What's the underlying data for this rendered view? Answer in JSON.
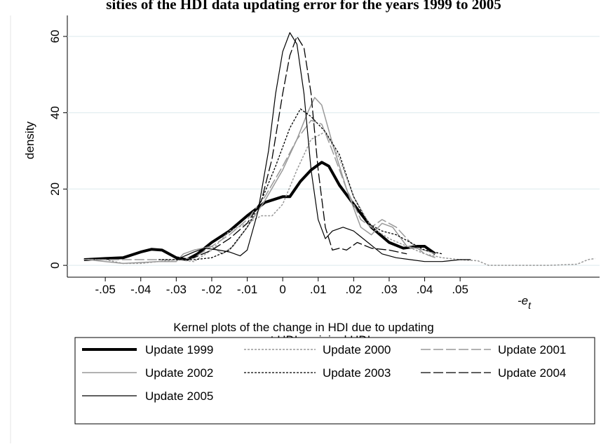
{
  "chart_data": {
    "type": "line",
    "title": "sities of the HDI data updating error for the years 1999 to 2005",
    "xlabel": [
      "Kernel plots of the change in HDI due to updating",
      "current HDI - original HDI"
    ],
    "ylabel": "density",
    "x_symbol": "-e",
    "x_symbol_subscript": "t",
    "xlim": [
      -0.0607,
      0.0893
    ],
    "ylim": [
      -3.1,
      65.5
    ],
    "xticks": [
      {
        "value": -0.05,
        "label": "-.05"
      },
      {
        "value": -0.04,
        "label": "-.04"
      },
      {
        "value": -0.03,
        "label": "-.03"
      },
      {
        "value": -0.02,
        "label": "-.02"
      },
      {
        "value": -0.01,
        "label": "-.01"
      },
      0,
      {
        "value": 0.01,
        "label": ".01"
      },
      {
        "value": 0.02,
        "label": ".02"
      },
      {
        "value": 0.03,
        "label": ".03"
      },
      {
        "value": 0.04,
        "label": ".04"
      },
      {
        "value": 0.05,
        "label": ".05"
      }
    ],
    "yticks": [
      0,
      20,
      40,
      60
    ],
    "grid": true,
    "series": [
      {
        "name": "Update 1999",
        "color": "#000000",
        "width": 4,
        "dash": "none",
        "x": [
          -0.056,
          -0.05,
          -0.045,
          -0.04,
          -0.037,
          -0.034,
          -0.03,
          -0.027,
          -0.024,
          -0.02,
          -0.015,
          -0.01,
          -0.005,
          0,
          0.002,
          0.005,
          0.008,
          0.011,
          0.013,
          0.016,
          0.02,
          0.025,
          0.03,
          0.034,
          0.038,
          0.04,
          0.043
        ],
        "values": [
          1.5,
          1.8,
          2,
          3.5,
          4.2,
          4,
          2,
          1.5,
          3,
          6,
          9,
          13,
          16.5,
          18,
          18,
          22,
          25,
          27,
          26,
          21,
          16,
          10,
          6,
          4.5,
          5,
          5,
          3
        ]
      },
      {
        "name": "Update 2000",
        "color": "#999999",
        "width": 1.5,
        "dash": "3,2",
        "x": [
          -0.055,
          -0.05,
          -0.045,
          -0.04,
          -0.035,
          -0.03,
          -0.025,
          -0.02,
          -0.015,
          -0.01,
          -0.006,
          -0.003,
          0,
          0.004,
          0.008,
          0.012,
          0.016,
          0.02,
          0.025,
          0.03,
          0.035,
          0.04,
          0.045,
          0.05,
          0.055,
          0.058,
          0.062,
          0.075,
          0.083,
          0.086,
          0.088
        ],
        "values": [
          1.5,
          1.5,
          0.5,
          0.5,
          1,
          1.5,
          1,
          4,
          9,
          11,
          13,
          13,
          16,
          25,
          33,
          35,
          28,
          18,
          10,
          7,
          5,
          3,
          2,
          1.5,
          1.2,
          0,
          0,
          0,
          0.3,
          1.5,
          1.8
        ]
      },
      {
        "name": "Update 2001",
        "color": "#999999",
        "width": 1.5,
        "dash": "14,4",
        "x": [
          -0.056,
          -0.05,
          -0.04,
          -0.03,
          -0.025,
          -0.02,
          -0.015,
          -0.01,
          -0.005,
          0,
          0.004,
          0.008,
          0.011,
          0.014,
          0.018,
          0.022,
          0.025,
          0.028,
          0.032,
          0.036,
          0.04,
          0.043
        ],
        "values": [
          1.5,
          1.5,
          1.5,
          1.5,
          2,
          5,
          8,
          12,
          18,
          26,
          33,
          38,
          37,
          30,
          20,
          12,
          10,
          12,
          10,
          6,
          3,
          2
        ]
      },
      {
        "name": "Update 2002",
        "color": "#999999",
        "width": 1.5,
        "dash": "none",
        "x": [
          -0.055,
          -0.05,
          -0.045,
          -0.035,
          -0.03,
          -0.028,
          -0.025,
          -0.02,
          -0.017,
          -0.014,
          -0.01,
          -0.005,
          0,
          0.004,
          0.007,
          0.009,
          0.011,
          0.014,
          0.018,
          0.022,
          0.025,
          0.028,
          0.031,
          0.035,
          0.04,
          0.043
        ],
        "values": [
          1.5,
          1,
          0.5,
          1,
          1,
          3,
          4,
          5,
          3,
          5,
          10,
          17,
          25,
          33,
          40,
          44,
          42,
          32,
          20,
          10,
          8,
          11,
          10,
          5,
          4,
          3
        ]
      },
      {
        "name": "Update 2003",
        "color": "#000000",
        "width": 1.3,
        "dash": "3,2",
        "x": [
          -0.035,
          -0.03,
          -0.025,
          -0.02,
          -0.015,
          -0.01,
          -0.006,
          -0.002,
          0.002,
          0.005,
          0.008,
          0.012,
          0.016,
          0.02,
          0.024,
          0.028,
          0.032,
          0.036,
          0.04,
          0.045
        ],
        "values": [
          1.5,
          1.5,
          1.5,
          2,
          4,
          10,
          17,
          26,
          36,
          41,
          39,
          35,
          29,
          18,
          11,
          9,
          8,
          6,
          4,
          3
        ]
      },
      {
        "name": "Update 2004",
        "color": "#000000",
        "width": 1.3,
        "dash": "14,4",
        "x": [
          -0.03,
          -0.025,
          -0.02,
          -0.015,
          -0.01,
          -0.006,
          -0.003,
          0,
          0.002,
          0.004,
          0.006,
          0.008,
          0.01,
          0.012,
          0.014,
          0.016,
          0.018,
          0.021,
          0.025,
          0.03,
          0.035
        ],
        "values": [
          1.5,
          2,
          4,
          7,
          11,
          17,
          28,
          45,
          55,
          60,
          57,
          45,
          25,
          10,
          4,
          4.5,
          4,
          6,
          4.5,
          4,
          3
        ]
      },
      {
        "name": "Update 2005",
        "color": "#000000",
        "width": 1.2,
        "dash": "none",
        "x": [
          -0.03,
          -0.025,
          -0.022,
          -0.018,
          -0.015,
          -0.012,
          -0.01,
          -0.007,
          -0.004,
          -0.002,
          0,
          0.002,
          0.004,
          0.006,
          0.008,
          0.01,
          0.012,
          0.014,
          0.017,
          0.02,
          0.024,
          0.028,
          0.032,
          0.036,
          0.04,
          0.045,
          0.05,
          0.053
        ],
        "values": [
          1.5,
          3.5,
          4.5,
          4,
          3.5,
          2.5,
          4,
          14,
          30,
          45,
          56,
          61,
          58,
          45,
          25,
          12,
          7,
          9,
          10,
          9,
          6,
          3,
          2,
          1.5,
          1,
          1,
          1.5,
          1.5
        ]
      }
    ]
  }
}
